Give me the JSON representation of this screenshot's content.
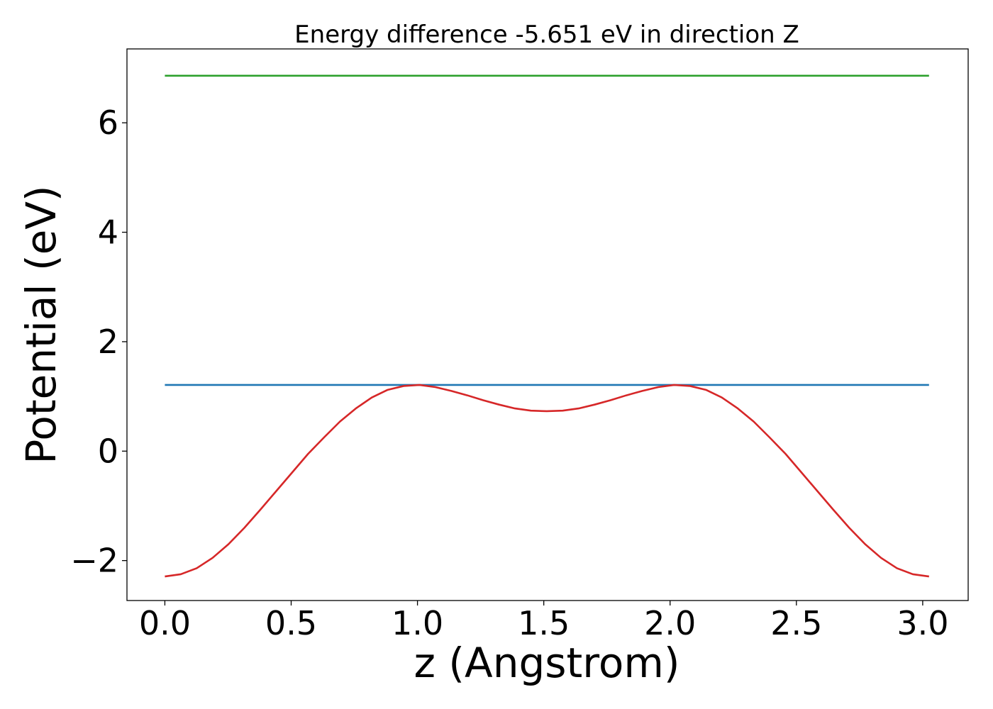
{
  "chart_data": {
    "type": "line",
    "title": "Energy difference -5.651 eV in direction Z",
    "xlabel": "z (Angstrom)",
    "ylabel": "Potential (eV)",
    "xlim": [
      -0.15,
      3.18
    ],
    "ylim": [
      -2.73,
      7.35
    ],
    "xticks": [
      0.0,
      0.5,
      1.0,
      1.5,
      2.0,
      2.5,
      3.0
    ],
    "xtick_labels": [
      "0.0",
      "0.5",
      "1.0",
      "1.5",
      "2.0",
      "2.5",
      "3.0"
    ],
    "yticks": [
      -2,
      0,
      2,
      4,
      6
    ],
    "ytick_labels": [
      "−2",
      "0",
      "2",
      "4",
      "6"
    ],
    "grid": false,
    "legend": "none",
    "series": [
      {
        "color": "#2ca02c",
        "x": [
          0.0,
          3.025
        ],
        "y": [
          6.86,
          6.86
        ]
      },
      {
        "color": "#1f77b4",
        "x": [
          0.0,
          3.025
        ],
        "y": [
          1.21,
          1.21
        ]
      },
      {
        "color": "#d62728",
        "x": [
          0.0,
          0.063,
          0.126,
          0.189,
          0.252,
          0.315,
          0.378,
          0.441,
          0.504,
          0.567,
          0.63,
          0.693,
          0.756,
          0.819,
          0.882,
          0.945,
          1.008,
          1.071,
          1.134,
          1.197,
          1.26,
          1.323,
          1.386,
          1.449,
          1.512,
          1.575,
          1.638,
          1.701,
          1.764,
          1.827,
          1.89,
          1.953,
          2.016,
          2.079,
          2.142,
          2.205,
          2.268,
          2.331,
          2.394,
          2.457,
          2.52,
          2.583,
          2.646,
          2.709,
          2.772,
          2.835,
          2.898,
          2.961,
          3.025
        ],
        "y": [
          -2.29,
          -2.25,
          -2.14,
          -1.95,
          -1.7,
          -1.4,
          -1.07,
          -0.73,
          -0.39,
          -0.05,
          0.25,
          0.54,
          0.78,
          0.98,
          1.12,
          1.19,
          1.21,
          1.17,
          1.1,
          1.02,
          0.93,
          0.85,
          0.78,
          0.74,
          0.73,
          0.74,
          0.78,
          0.85,
          0.93,
          1.02,
          1.1,
          1.17,
          1.21,
          1.19,
          1.12,
          0.98,
          0.78,
          0.54,
          0.25,
          -0.05,
          -0.39,
          -0.73,
          -1.07,
          -1.4,
          -1.7,
          -1.95,
          -2.14,
          -2.25,
          -2.29
        ]
      }
    ]
  }
}
